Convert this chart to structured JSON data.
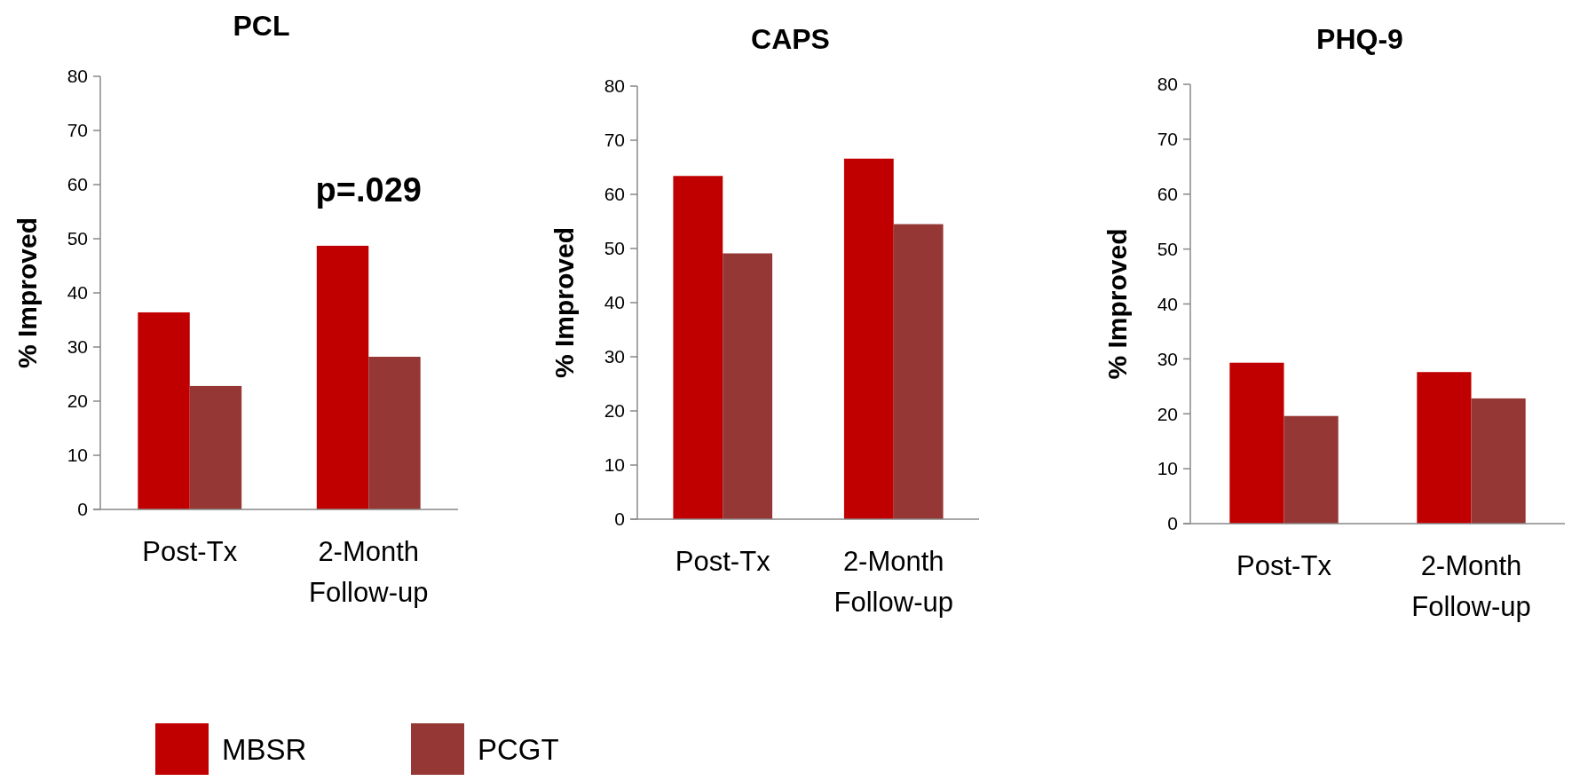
{
  "chart_data": [
    {
      "type": "bar",
      "title": "PCL",
      "ylabel": "% Improved",
      "categories": [
        "Post-Tx",
        "2-Month Follow-up"
      ],
      "series": [
        {
          "name": "MBSR",
          "color": "#c00000",
          "values": [
            36.4,
            48.7
          ]
        },
        {
          "name": "PCGT",
          "color": "#953735",
          "values": [
            22.8,
            28.2
          ]
        }
      ],
      "ylim": [
        0,
        80
      ],
      "yticks": [
        0,
        10,
        20,
        30,
        40,
        50,
        60,
        70,
        80
      ],
      "grid": false,
      "legend": "bottom",
      "annotations": [
        "p=.029"
      ]
    },
    {
      "type": "bar",
      "title": "CAPS",
      "ylabel": "% Improved",
      "categories": [
        "Post-Tx",
        "2-Month Follow-up"
      ],
      "series": [
        {
          "color": "#c00000",
          "values": [
            63.4,
            66.6
          ]
        },
        {
          "color": "#953735",
          "values": [
            49.1,
            54.5
          ]
        }
      ],
      "ylim": [
        0,
        80
      ],
      "yticks": [
        0,
        10,
        20,
        30,
        40,
        50,
        60,
        70,
        80
      ],
      "grid": false
    },
    {
      "type": "bar",
      "title": "PHQ-9",
      "ylabel": "% Improved",
      "categories": [
        "Post-Tx",
        "2-Month Follow-up"
      ],
      "series": [
        {
          "color": "#c00000",
          "values": [
            29.3,
            27.6
          ]
        },
        {
          "color": "#953735",
          "values": [
            19.6,
            22.8
          ]
        }
      ],
      "ylim": [
        0,
        80
      ],
      "yticks": [
        0,
        10,
        20,
        30,
        40,
        50,
        60,
        70,
        80
      ],
      "grid": false
    }
  ]
}
